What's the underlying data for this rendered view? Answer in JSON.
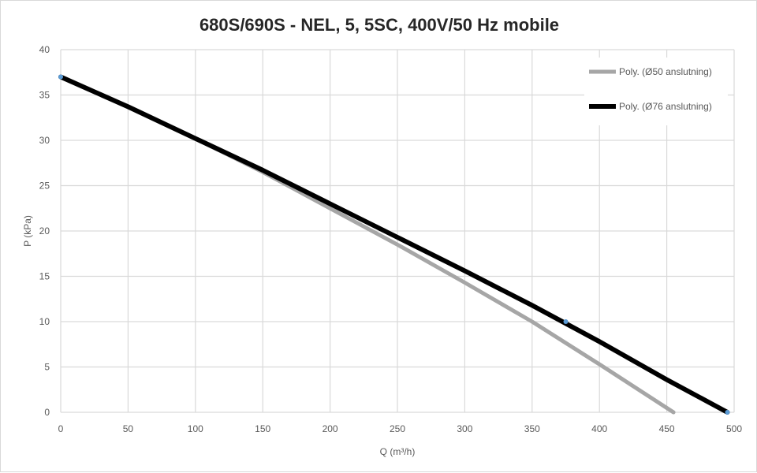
{
  "chart_data": {
    "type": "line",
    "title": "680S/690S - NEL, 5, 5SC, 400V/50 Hz mobile",
    "xlabel": "Q (m³/h)",
    "ylabel": "P (kPa)",
    "xlim": [
      0,
      500
    ],
    "ylim": [
      0,
      40
    ],
    "xticks": [
      0,
      50,
      100,
      150,
      200,
      250,
      300,
      350,
      400,
      450,
      500
    ],
    "yticks": [
      0,
      5,
      10,
      15,
      20,
      25,
      30,
      35,
      40
    ],
    "grid": true,
    "legend_position": "top-right",
    "series": [
      {
        "name": "Poly. (Ø50 anslutning)",
        "color": "#a6a6a6",
        "x": [
          0,
          50,
          100,
          150,
          200,
          250,
          300,
          350,
          400,
          455
        ],
        "y": [
          37,
          33.7,
          30.2,
          26.5,
          22.5,
          18.5,
          14.3,
          10.0,
          5.3,
          0
        ]
      },
      {
        "name": "Poly. (Ø76 anslutning)",
        "color": "#000000",
        "x": [
          0,
          50,
          100,
          150,
          200,
          250,
          300,
          350,
          400,
          450,
          495
        ],
        "y": [
          37,
          33.7,
          30.2,
          26.7,
          23.0,
          19.3,
          15.6,
          11.8,
          7.8,
          3.6,
          0
        ]
      }
    ],
    "markers": [
      {
        "x": 0,
        "y": 37,
        "color": "#5b9bd5"
      },
      {
        "x": 375,
        "y": 10,
        "color": "#5b9bd5"
      },
      {
        "x": 495,
        "y": 0,
        "color": "#5b9bd5"
      }
    ]
  }
}
